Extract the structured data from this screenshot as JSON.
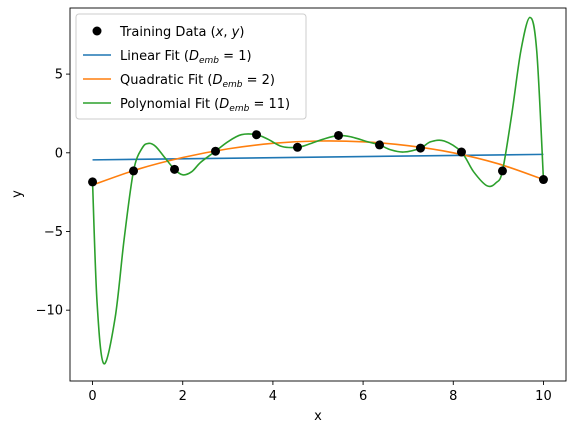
{
  "chart_data": {
    "type": "line",
    "title": "",
    "xlabel": "x",
    "ylabel": "y",
    "xlim": [
      -0.5,
      10.5
    ],
    "ylim": [
      -14.5,
      9.2
    ],
    "xticks": [
      0,
      2,
      4,
      6,
      8,
      10
    ],
    "yticks": [
      5,
      0,
      -5,
      -10
    ],
    "ytick_labels": [
      "5",
      "0",
      "−5",
      "−10"
    ],
    "grid": false,
    "legend_position": "top-left",
    "training_data": {
      "name": "Training Data (x, y)",
      "color": "#000000",
      "x": [
        0,
        0.909,
        1.818,
        2.727,
        3.636,
        4.545,
        5.455,
        6.364,
        7.273,
        8.182,
        9.091,
        10
      ],
      "y": [
        -1.85,
        -1.15,
        -1.05,
        0.1,
        1.15,
        0.35,
        1.1,
        0.5,
        0.3,
        0.05,
        -1.15,
        -1.7
      ]
    },
    "series": [
      {
        "name": "Linear Fit (D_emb = 1)",
        "color": "#1f77b4",
        "x": [
          0,
          10
        ],
        "y": [
          -0.45,
          -0.1
        ]
      },
      {
        "name": "Quadratic Fit (D_emb = 2)",
        "color": "#ff7f0e",
        "x": [
          0,
          1,
          2,
          3,
          4,
          5,
          6,
          7,
          8,
          9,
          10
        ],
        "y": [
          -2.05,
          -1.05,
          -0.3,
          0.25,
          0.6,
          0.75,
          0.7,
          0.45,
          0.0,
          -0.7,
          -1.7
        ]
      },
      {
        "name": "Polynomial Fit (D_emb = 11)",
        "color": "#2ca02c",
        "x": [
          0,
          0.1,
          0.25,
          0.5,
          0.7,
          0.909,
          1.1,
          1.25,
          1.4,
          1.6,
          1.818,
          2.0,
          2.2,
          2.4,
          2.727,
          3.0,
          3.3,
          3.636,
          3.9,
          4.2,
          4.545,
          4.8,
          5.1,
          5.455,
          5.75,
          6.1,
          6.364,
          6.6,
          6.9,
          7.273,
          7.5,
          7.8,
          8.182,
          8.45,
          8.75,
          8.95,
          9.091,
          9.3,
          9.5,
          9.7,
          9.85,
          10
        ],
        "y": [
          -1.85,
          -9.5,
          -13.4,
          -10.5,
          -5.5,
          -1.15,
          0.3,
          0.6,
          0.4,
          -0.3,
          -1.05,
          -1.4,
          -1.2,
          -0.6,
          0.1,
          0.7,
          1.15,
          1.15,
          0.85,
          0.4,
          0.35,
          0.55,
          0.85,
          1.1,
          1.0,
          0.7,
          0.5,
          0.2,
          0.05,
          0.3,
          0.7,
          0.75,
          0.05,
          -1.2,
          -2.1,
          -1.9,
          -1.15,
          2.5,
          6.5,
          8.6,
          6.5,
          -1.7
        ]
      }
    ]
  }
}
